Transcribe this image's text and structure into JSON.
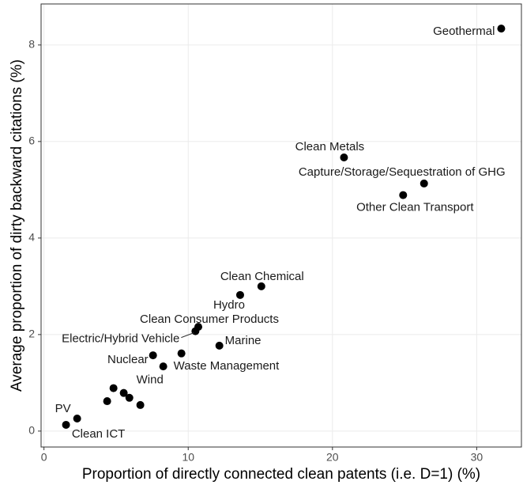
{
  "chart_data": {
    "type": "scatter",
    "x_label": "Proportion of directly connected clean patents (i.e. D=1) (%)",
    "y_label": "Average proportion of dirty backward citations (%)",
    "labels": [
      "Geothermal",
      "Clean Metals",
      "Capture/Storage/Sequestration of GHG",
      "Other Clean Transport",
      "Clean Chemical",
      "Hydro",
      "Clean Consumer Products",
      "Electric/Hybrid Vehicle",
      "Marine",
      "Nuclear",
      "Waste Management",
      null,
      "Wind",
      null,
      null,
      null,
      null,
      "PV",
      "Clean ICT"
    ],
    "x": [
      31.7,
      20.8,
      26.35,
      24.9,
      15.07,
      13.6,
      10.7,
      10.5,
      12.16,
      7.56,
      8.27,
      9.53,
      5.92,
      4.82,
      5.53,
      6.68,
      4.38,
      2.3,
      1.53
    ],
    "y": [
      8.34,
      5.67,
      5.13,
      4.89,
      3.0,
      2.82,
      2.16,
      2.07,
      1.77,
      1.57,
      1.34,
      1.61,
      0.69,
      0.89,
      0.79,
      0.54,
      0.62,
      0.26,
      0.13
    ],
    "color": "#000000",
    "xlim": [
      -0.2,
      33.1
    ],
    "xticks": [
      0,
      10,
      20,
      30
    ],
    "ylim": [
      -0.33,
      8.85
    ],
    "yticks": [
      0,
      2,
      4,
      6,
      8
    ],
    "grid": true
  }
}
